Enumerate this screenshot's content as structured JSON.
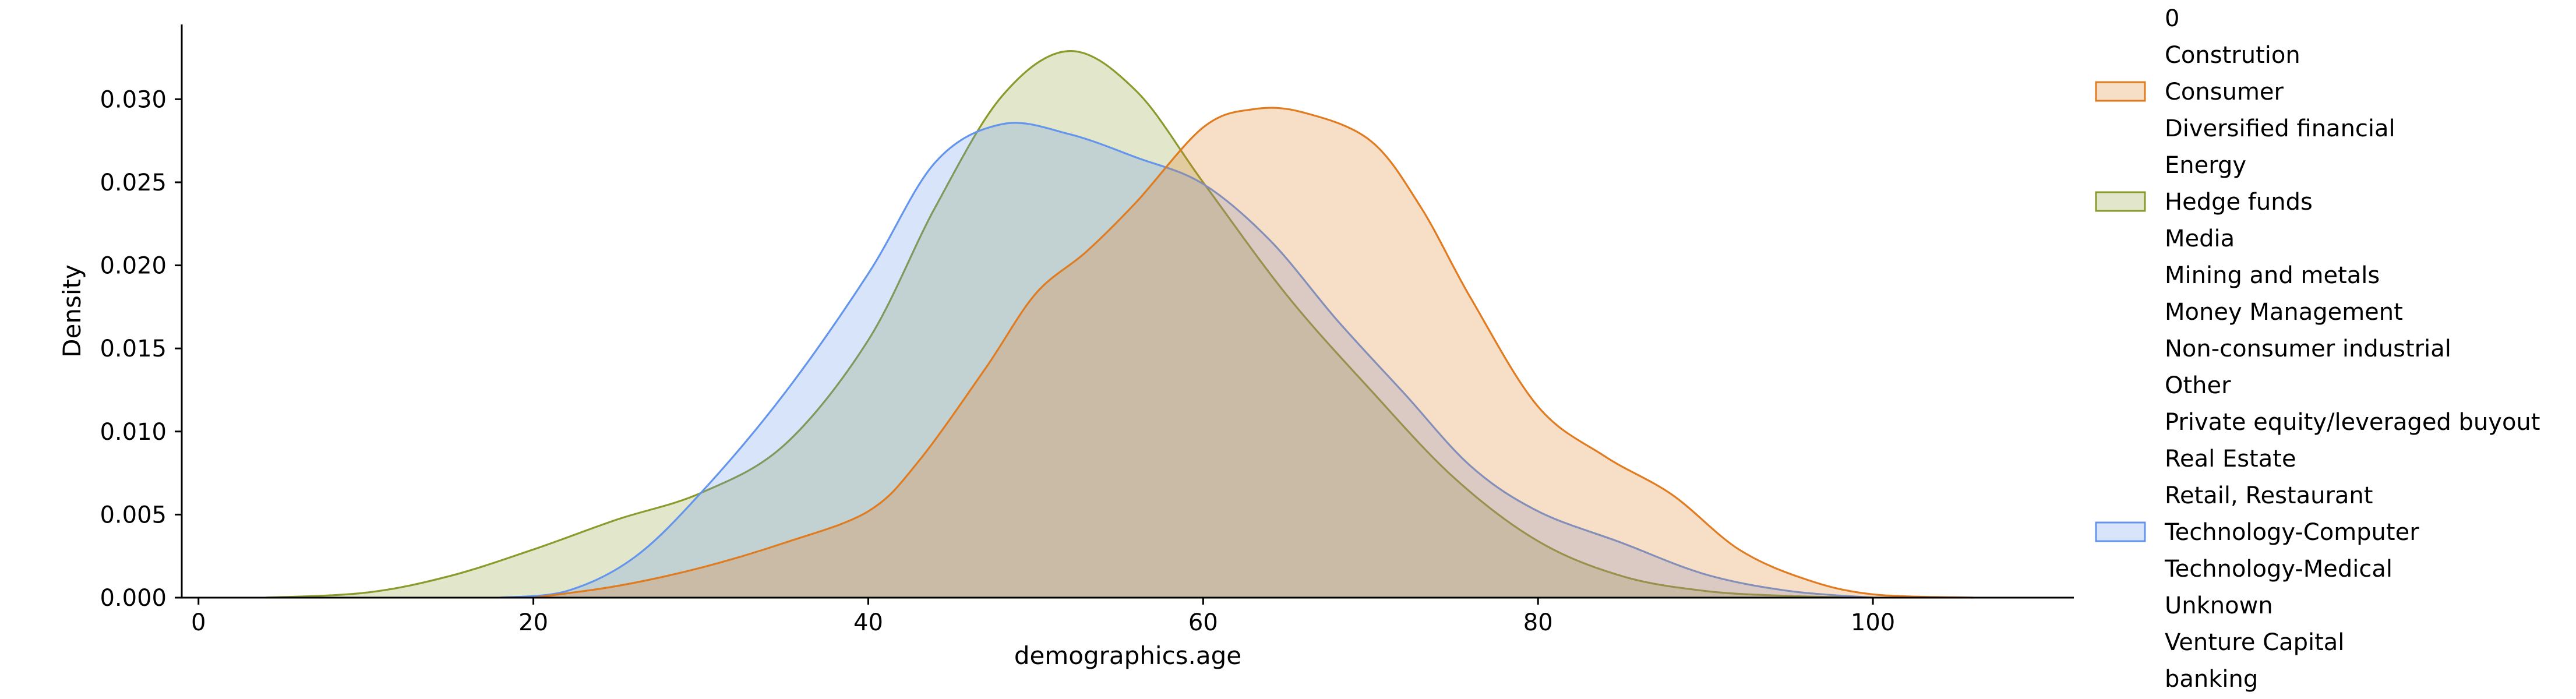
{
  "chart_data": {
    "type": "area",
    "xlabel": "demographics.age",
    "ylabel": "Density",
    "xlim": [
      -1,
      112
    ],
    "ylim": [
      0,
      0.0345
    ],
    "xticks": [
      0,
      20,
      40,
      60,
      80,
      100
    ],
    "xtick_labels": [
      "0",
      "20",
      "40",
      "60",
      "80",
      "100"
    ],
    "yticks": [
      0,
      0.005,
      0.01,
      0.015,
      0.02,
      0.025,
      0.03
    ],
    "ytick_labels": [
      "0.000",
      "0.005",
      "0.010",
      "0.015",
      "0.020",
      "0.025",
      "0.030"
    ],
    "grid": false,
    "legend_position": "right",
    "legend": [
      {
        "label": "0",
        "color": null
      },
      {
        "label": "Constrution",
        "color": null
      },
      {
        "label": "Consumer",
        "color": "#e07b20"
      },
      {
        "label": "Diversified financial",
        "color": null
      },
      {
        "label": "Energy",
        "color": null
      },
      {
        "label": "Hedge funds",
        "color": "#8a9a2c"
      },
      {
        "label": "Media",
        "color": null
      },
      {
        "label": "Mining and metals",
        "color": null
      },
      {
        "label": "Money Management",
        "color": null
      },
      {
        "label": "Non-consumer industrial",
        "color": null
      },
      {
        "label": "Other",
        "color": null
      },
      {
        "label": "Private equity/leveraged buyout",
        "color": null
      },
      {
        "label": "Real Estate",
        "color": null
      },
      {
        "label": "Retail, Restaurant",
        "color": null
      },
      {
        "label": "Technology-Computer",
        "color": "#6495ed"
      },
      {
        "label": "Technology-Medical",
        "color": null
      },
      {
        "label": "Unknown",
        "color": null
      },
      {
        "label": "Venture Capital",
        "color": null
      },
      {
        "label": "banking",
        "color": null
      }
    ],
    "series": [
      {
        "name": "Hedge funds",
        "color": "#8a9a2c",
        "x": [
          4,
          10,
          15,
          20,
          25,
          30,
          35,
          40,
          44,
          48,
          52,
          56,
          60,
          65,
          70,
          75,
          80,
          85,
          90,
          95,
          100
        ],
        "y": [
          0.0,
          0.0003,
          0.0013,
          0.0029,
          0.0047,
          0.0063,
          0.0092,
          0.0155,
          0.0235,
          0.0302,
          0.0329,
          0.0305,
          0.025,
          0.0182,
          0.0125,
          0.0072,
          0.0034,
          0.0013,
          0.0004,
          0.0001,
          0.0
        ]
      },
      {
        "name": "Technology-Computer",
        "color": "#6495ed",
        "x": [
          18,
          22,
          26,
          30,
          35,
          40,
          44,
          48,
          52,
          56,
          60,
          64,
          68,
          72,
          76,
          80,
          85,
          90,
          95,
          100
        ],
        "y": [
          0.0,
          0.0004,
          0.0024,
          0.0063,
          0.0123,
          0.0195,
          0.0262,
          0.0285,
          0.0279,
          0.0265,
          0.0249,
          0.0215,
          0.0167,
          0.0123,
          0.0079,
          0.0052,
          0.0033,
          0.0014,
          0.0004,
          0.0
        ]
      },
      {
        "name": "Consumer",
        "color": "#e07b20",
        "x": [
          20,
          25,
          30,
          35,
          40,
          43,
          47,
          50,
          53,
          56,
          60,
          63,
          66,
          70,
          73,
          76,
          80,
          84,
          88,
          92,
          96,
          100,
          106
        ],
        "y": [
          0.0,
          0.0007,
          0.0018,
          0.0033,
          0.0052,
          0.0082,
          0.0138,
          0.0183,
          0.0208,
          0.0238,
          0.0283,
          0.0294,
          0.0292,
          0.0275,
          0.0235,
          0.018,
          0.0115,
          0.0085,
          0.0062,
          0.0029,
          0.0011,
          0.0002,
          0.0
        ]
      }
    ]
  }
}
